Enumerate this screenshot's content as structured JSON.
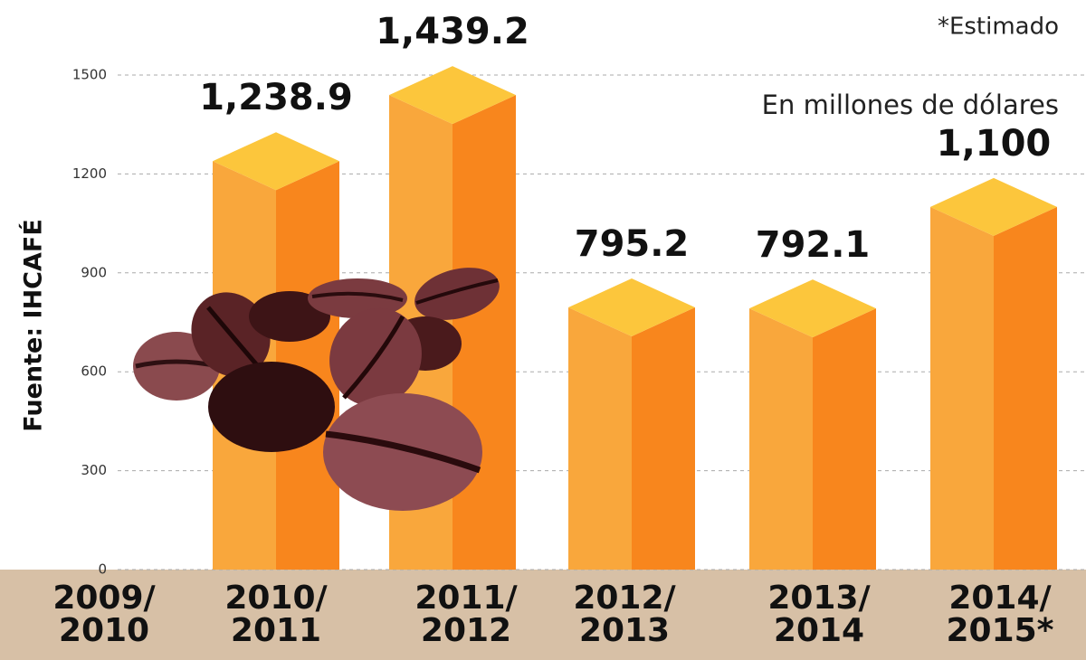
{
  "chart_data": {
    "type": "bar3d",
    "note": "*Estimado",
    "subtitle": "En millones de dólares",
    "source": "Fuente: IHCAFÉ",
    "categories": [
      [
        "2009/",
        "2010"
      ],
      [
        "2010/",
        "2011"
      ],
      [
        "2011/",
        "2012"
      ],
      [
        "2012/",
        "2013"
      ],
      [
        "2013/",
        "2014"
      ],
      [
        "2014/",
        "2015*"
      ]
    ],
    "values": [
      null,
      1238.9,
      1439.2,
      795.2,
      792.1,
      1100
    ],
    "value_labels": [
      null,
      "1,238.9",
      "1,439.2",
      "795.2",
      "792.1",
      "1,100"
    ],
    "colors": {
      "left": "#f9a73c",
      "right": "#f8861d",
      "top": "#fcc63c"
    },
    "ylim": [
      0,
      1500
    ],
    "yticks": [
      0,
      300,
      600,
      900,
      1200,
      1500
    ],
    "grid": true
  }
}
